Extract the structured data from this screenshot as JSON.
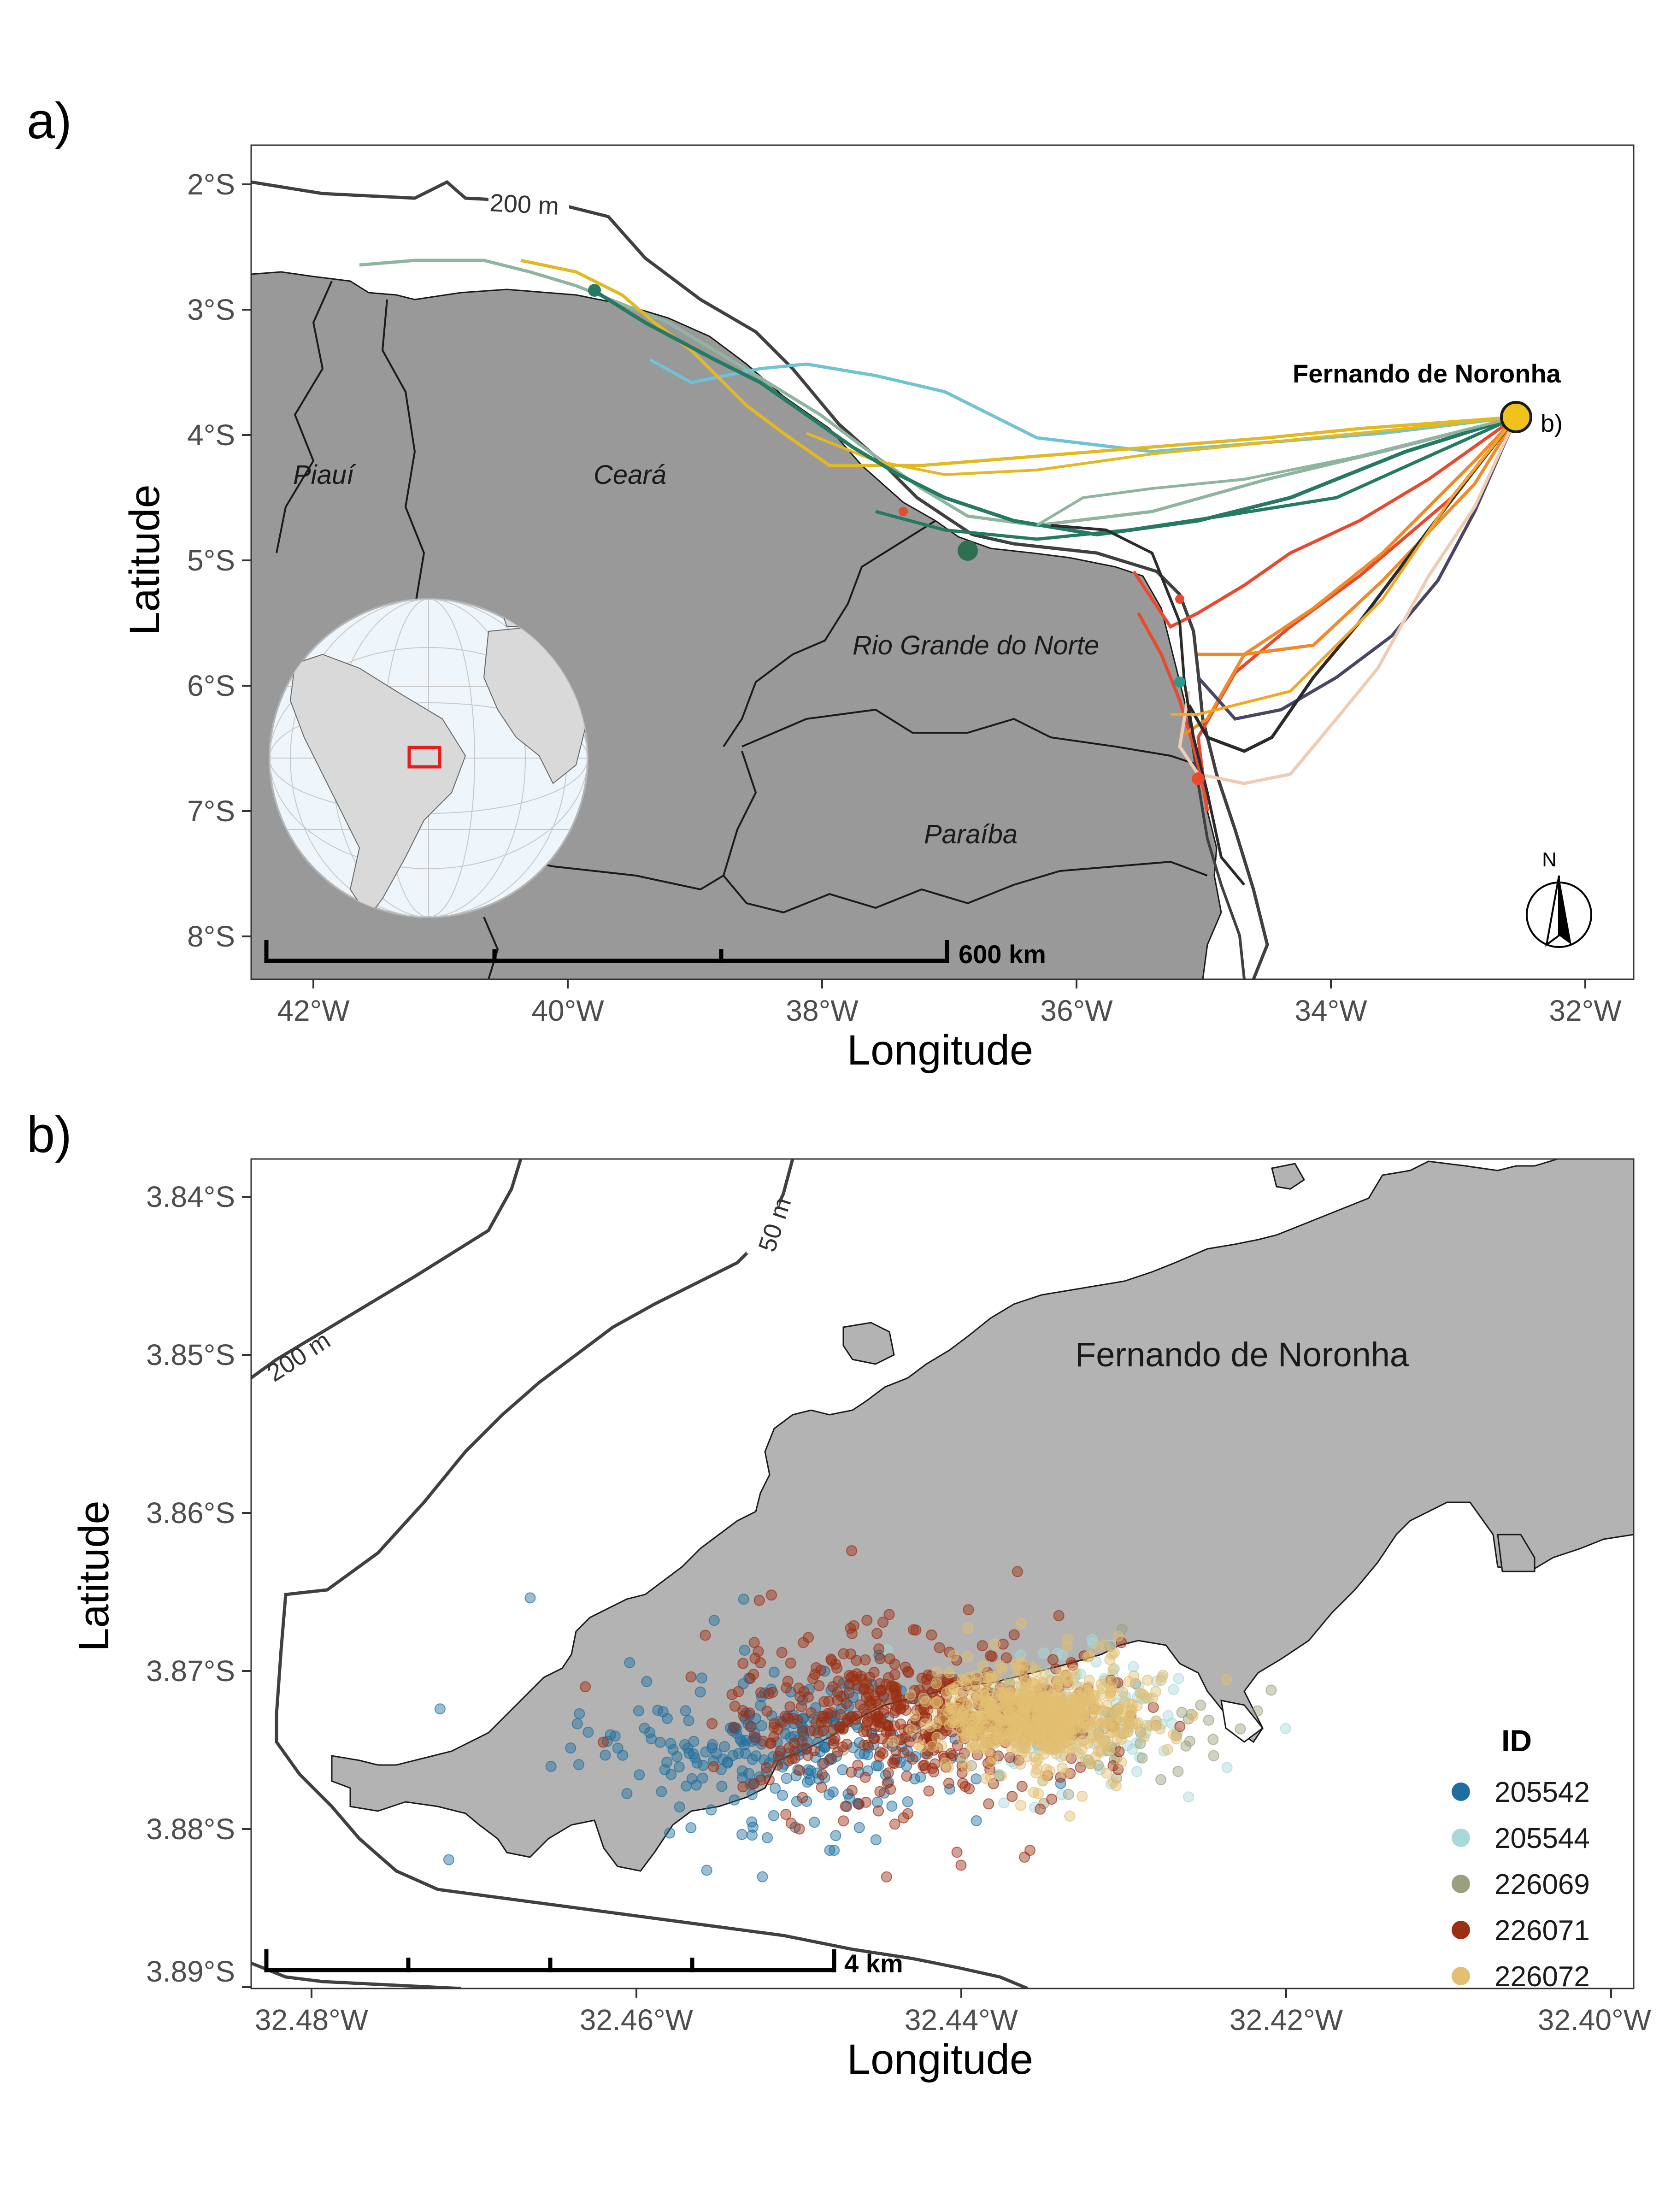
{
  "panel_a": {
    "label": "a)",
    "xlabel": "Longitude",
    "ylabel": "Latitude",
    "x_ticks": [
      "42°W",
      "40°W",
      "38°W",
      "36°W",
      "34°W",
      "32°W"
    ],
    "y_ticks": [
      "2°S",
      "3°S",
      "4°S",
      "5°S",
      "6°S",
      "7°S",
      "8°S"
    ],
    "states": [
      "Piauí",
      "Ceará",
      "Rio Grande do Norte",
      "Paraíba"
    ],
    "contour_label": "200 m",
    "island_label": "Fernando de Noronha",
    "inset_link_label": "b)",
    "scalebar_label": "600 km",
    "north_label": "N",
    "colors": {
      "land": "#999999",
      "contour": "#404040",
      "marker": "#f2c21c"
    }
  },
  "panel_b": {
    "label": "b)",
    "xlabel": "Longitude",
    "ylabel": "Latitude",
    "x_ticks": [
      "32.48°W",
      "32.46°W",
      "32.44°W",
      "32.42°W",
      "32.40°W"
    ],
    "y_ticks": [
      "3.84°S",
      "3.85°S",
      "3.86°S",
      "3.87°S",
      "3.88°S",
      "3.89°S"
    ],
    "contour_labels": [
      "200 m",
      "50 m"
    ],
    "island_label": "Fernando de Noronha",
    "scalebar_label": "4 km",
    "legend_title": "ID",
    "legend": [
      {
        "id": "205542",
        "color": "#1e6f9f"
      },
      {
        "id": "205544",
        "color": "#a8d8d8"
      },
      {
        "id": "226069",
        "color": "#9aa07c"
      },
      {
        "id": "226071",
        "color": "#9b2f12"
      },
      {
        "id": "226072",
        "color": "#e3bf72"
      }
    ],
    "colors": {
      "land": "#b3b3b3",
      "contour": "#404040"
    }
  },
  "chart_data": [
    {
      "type": "scatter",
      "xlabel": "Longitude",
      "ylabel": "Latitude",
      "xlim": [
        -42.5,
        -31.5
      ],
      "ylim": [
        -8.3,
        -1.7
      ],
      "annotations": [
        "Fernando de Noronha",
        "b)",
        "200 m",
        "600 km",
        "N",
        "Piauí",
        "Ceará",
        "Rio Grande do Norte",
        "Paraíba"
      ],
      "series": [
        {
          "values": [
            [
              -41.7,
              -2.7
            ],
            [
              -40.5,
              -2.6
            ],
            [
              -39.5,
              -2.9
            ],
            [
              -38,
              -3.6
            ],
            [
              -36.5,
              -4.5
            ],
            [
              -35.2,
              -5.0
            ],
            [
              -32.4,
              -3.9
            ]
          ]
        },
        {
          "values": [
            [
              -38.6,
              -3.4
            ],
            [
              -37.5,
              -3.6
            ],
            [
              -36.8,
              -3.5
            ],
            [
              -34.8,
              -3.8
            ],
            [
              -32.4,
              -3.9
            ]
          ]
        },
        {
          "values": [
            [
              -38.1,
              -3.1
            ],
            [
              -37.0,
              -4.1
            ],
            [
              -35.5,
              -4.1
            ],
            [
              -33.5,
              -4.0
            ],
            [
              -32.4,
              -3.9
            ]
          ]
        },
        {
          "values": [
            [
              -35.0,
              -5.9
            ],
            [
              -34.7,
              -5.3
            ],
            [
              -33.5,
              -4.6
            ],
            [
              -32.4,
              -3.9
            ]
          ]
        },
        {
          "values": [
            [
              -34.8,
              -6.9
            ],
            [
              -34.0,
              -6.5
            ],
            [
              -33.0,
              -5.0
            ],
            [
              -32.4,
              -3.9
            ]
          ]
        }
      ],
      "marker": {
        "name": "Fernando de Noronha",
        "x": -32.42,
        "y": -3.85
      }
    },
    {
      "type": "scatter",
      "xlabel": "Longitude",
      "ylabel": "Latitude",
      "xlim": [
        -32.4835,
        -32.3985
      ],
      "ylim": [
        -3.8925,
        -3.8375
      ],
      "legend_title": "ID",
      "annotations": [
        "Fernando de Noronha",
        "200 m",
        "50 m",
        "4 km"
      ],
      "series": [
        {
          "name": "205542",
          "color": "#1e6f9f",
          "center": [
            -32.451,
            -3.8765
          ],
          "spread": [
            0.006,
            0.0022
          ],
          "n": 280
        },
        {
          "name": "205544",
          "color": "#a8d8d8",
          "center": [
            -32.433,
            -3.8745
          ],
          "spread": [
            0.004,
            0.002
          ],
          "n": 120
        },
        {
          "name": "226069",
          "color": "#9aa07c",
          "center": [
            -32.431,
            -3.875
          ],
          "spread": [
            0.004,
            0.002
          ],
          "n": 60
        },
        {
          "name": "226071",
          "color": "#9b2f12",
          "center": [
            -32.443,
            -3.8745
          ],
          "spread": [
            0.006,
            0.0022
          ],
          "n": 520
        },
        {
          "name": "226072",
          "color": "#e3bf72",
          "center": [
            -32.435,
            -3.8745
          ],
          "spread": [
            0.003,
            0.0014
          ],
          "n": 700
        }
      ]
    }
  ]
}
